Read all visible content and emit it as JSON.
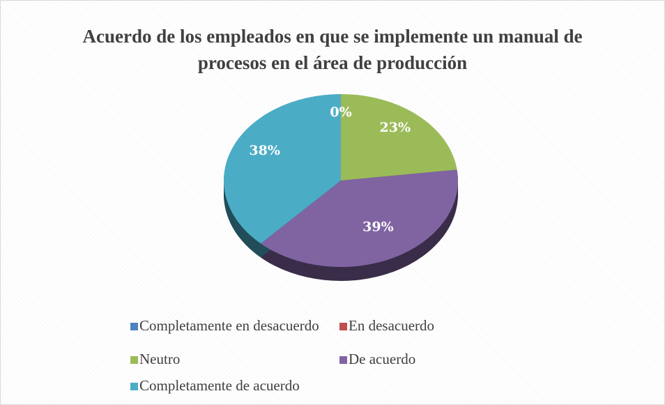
{
  "chart_data": {
    "type": "pie",
    "title": "Acuerdo de los empleados en que se implemente un manual de procesos en el área de producción",
    "categories": [
      "Completamente en desacuerdo",
      "En desacuerdo",
      "Neutro",
      "De acuerdo",
      "Completamente de acuerdo"
    ],
    "values": [
      0,
      0,
      23,
      39,
      38
    ],
    "value_labels": [
      "0%",
      "0%",
      "23%",
      "39%",
      "38%"
    ],
    "colors": [
      "#4f81bd",
      "#c0504d",
      "#9bbb59",
      "#8064a2",
      "#4bacc6"
    ],
    "legend": "bottom"
  }
}
